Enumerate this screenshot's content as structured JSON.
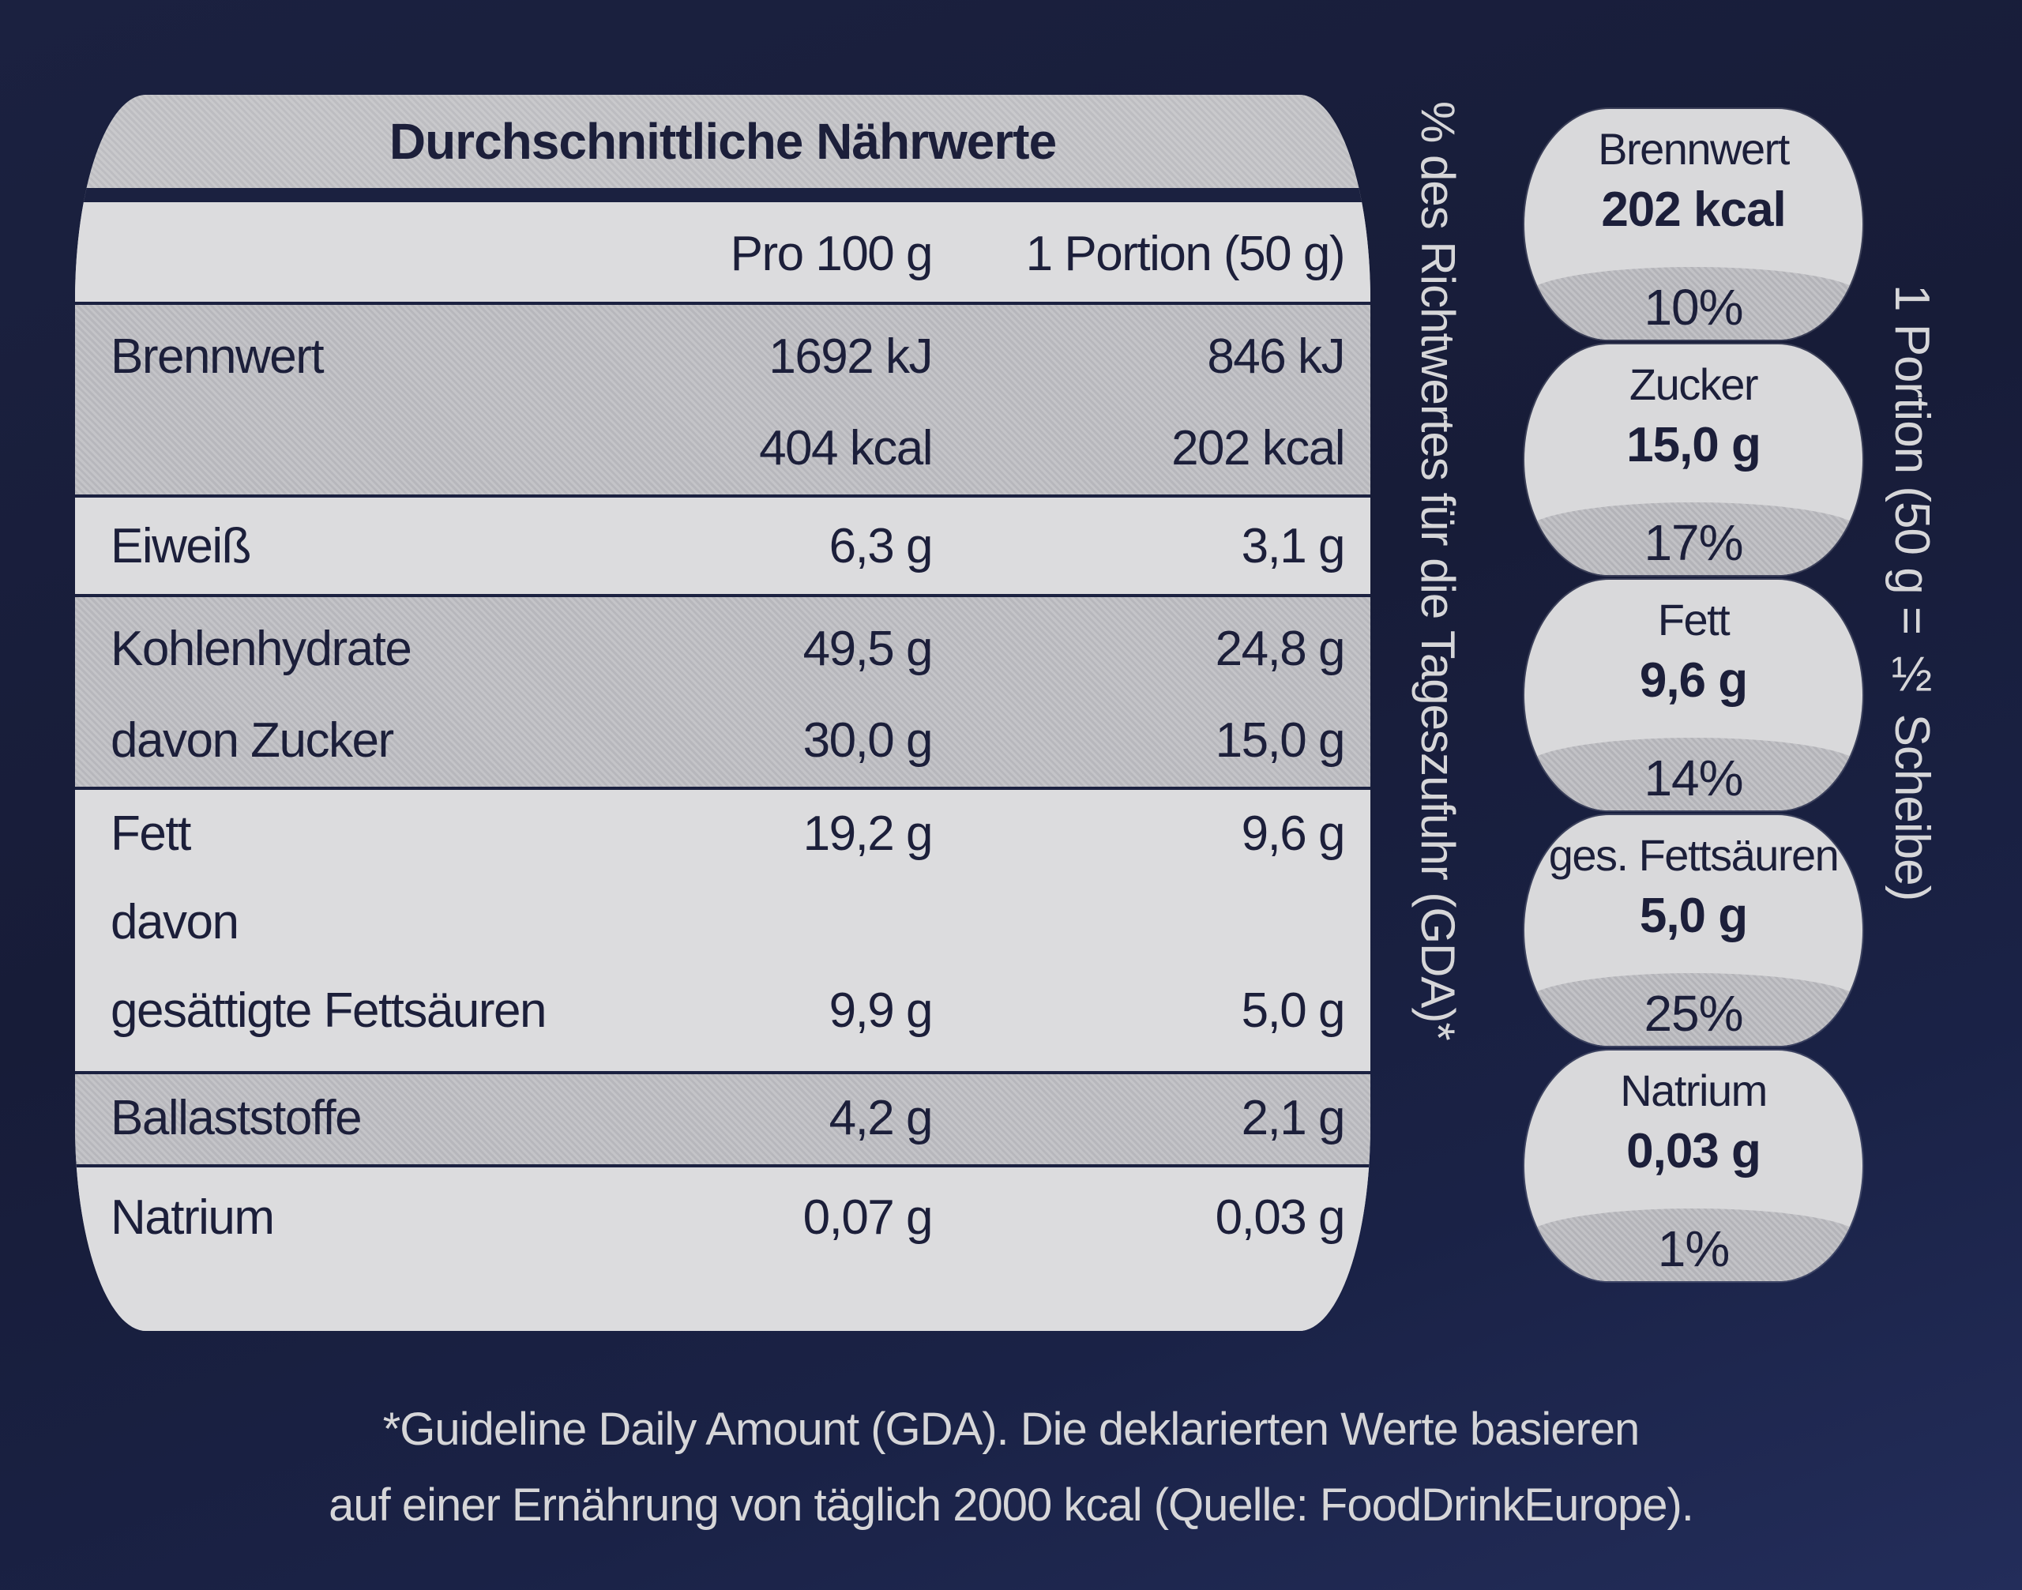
{
  "table": {
    "title": "Durchschnittliche Nährwerte",
    "col_per100": "Pro 100 g",
    "col_portion": "1 Portion (50 g)",
    "rows": {
      "energy": {
        "label": "Brennwert",
        "per100_kj": "1692 kJ",
        "per100_kcal": "404 kcal",
        "portion_kj": "846 kJ",
        "portion_kcal": "202 kcal"
      },
      "protein": {
        "label": "Eiweiß",
        "per100": "6,3 g",
        "portion": "3,1 g"
      },
      "carbs": {
        "label": "Kohlenhydrate",
        "per100": "49,5 g",
        "portion": "24,8 g"
      },
      "sugar": {
        "label": "davon Zucker",
        "per100": "30,0 g",
        "portion": "15,0 g"
      },
      "fat": {
        "label": "Fett",
        "per100": "19,2 g",
        "portion": "9,6 g"
      },
      "fat_davon": {
        "label": "davon"
      },
      "satfat": {
        "label": "gesättigte Fettsäuren",
        "per100": "9,9 g",
        "portion": "5,0 g"
      },
      "fibre": {
        "label": "Ballaststoffe",
        "per100": "4,2 g",
        "portion": "2,1 g"
      },
      "sodium": {
        "label": "Natrium",
        "per100": "0,07 g",
        "portion": "0,03 g"
      }
    }
  },
  "gda_side_label": "% des Richtwertes für die Tageszufuhr (GDA)*",
  "portion_side_label": "1 Portion (50 g = ½ Scheibe)",
  "gda_badges": [
    {
      "name": "Brennwert",
      "value": "202 kcal",
      "percent": "10%"
    },
    {
      "name": "Zucker",
      "value": "15,0 g",
      "percent": "17%"
    },
    {
      "name": "Fett",
      "value": "9,6 g",
      "percent": "14%"
    },
    {
      "name": "ges. Fettsäuren",
      "value": "5,0 g",
      "percent": "25%"
    },
    {
      "name": "Natrium",
      "value": "0,03 g",
      "percent": "1%"
    }
  ],
  "footnote": {
    "line1": "*Guideline Daily Amount (GDA). Die deklarierten Werte basieren",
    "line2": "auf einer Ernährung von täglich 2000 kcal (Quelle: FoodDrinkEurope)."
  },
  "colors": {
    "background": "#1b2140",
    "panel": "#d9d9db",
    "text_dark": "#1c1f3a",
    "text_light": "#d6d6d8"
  }
}
